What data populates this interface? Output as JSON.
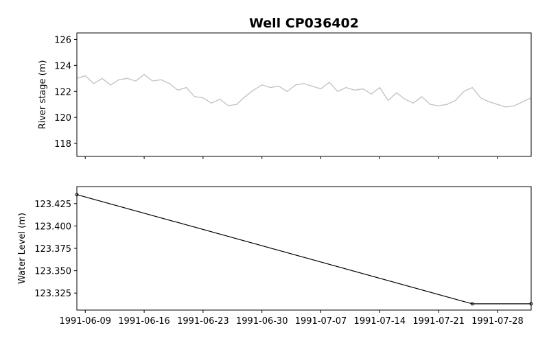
{
  "title": "Well CP036402",
  "chart_data": [
    {
      "type": "line",
      "ylabel": "River stage (m)",
      "ylim": [
        117,
        126.5
      ],
      "yticks": [
        118,
        120,
        122,
        124,
        126
      ],
      "xlim": [
        "1991-06-08",
        "1991-08-01"
      ],
      "xticks": [],
      "grid": false,
      "color": "#c0c0c0",
      "series": [
        {
          "x": [
            "1991-06-08",
            "1991-06-09",
            "1991-06-10",
            "1991-06-11",
            "1991-06-12",
            "1991-06-13",
            "1991-06-14",
            "1991-06-15",
            "1991-06-16",
            "1991-06-17",
            "1991-06-18",
            "1991-06-19",
            "1991-06-20",
            "1991-06-21",
            "1991-06-22",
            "1991-06-23",
            "1991-06-24",
            "1991-06-25",
            "1991-06-26",
            "1991-06-27",
            "1991-06-28",
            "1991-06-29",
            "1991-06-30",
            "1991-07-01",
            "1991-07-02",
            "1991-07-03",
            "1991-07-04",
            "1991-07-05",
            "1991-07-06",
            "1991-07-07",
            "1991-07-08",
            "1991-07-09",
            "1991-07-10",
            "1991-07-11",
            "1991-07-12",
            "1991-07-13",
            "1991-07-14",
            "1991-07-15",
            "1991-07-16",
            "1991-07-17",
            "1991-07-18",
            "1991-07-19",
            "1991-07-20",
            "1991-07-21",
            "1991-07-22",
            "1991-07-23",
            "1991-07-24",
            "1991-07-25",
            "1991-07-26",
            "1991-07-27",
            "1991-07-28",
            "1991-07-29",
            "1991-07-30",
            "1991-07-31",
            "1991-08-01"
          ],
          "values": [
            123.0,
            123.2,
            122.6,
            123.0,
            122.5,
            122.9,
            123.0,
            122.8,
            123.3,
            122.8,
            122.9,
            122.6,
            122.1,
            122.3,
            121.6,
            121.5,
            121.1,
            121.4,
            120.9,
            121.0,
            121.6,
            122.1,
            122.5,
            122.3,
            122.4,
            122.0,
            122.5,
            122.6,
            122.4,
            122.2,
            122.7,
            122.0,
            122.3,
            122.1,
            122.2,
            121.8,
            122.3,
            121.3,
            121.9,
            121.4,
            121.1,
            121.6,
            121.0,
            120.9,
            121.0,
            121.3,
            122.0,
            122.3,
            121.5,
            121.2,
            121.0,
            120.8,
            120.9,
            121.2,
            121.5
          ]
        }
      ]
    },
    {
      "type": "line",
      "ylabel": "Water Level (m)",
      "ylim": [
        123.306,
        123.444
      ],
      "yticks": [
        123.325,
        123.35,
        123.375,
        123.4,
        123.425
      ],
      "yticklabels": [
        "123.325",
        "123.350",
        "123.375",
        "123.400",
        "123.425"
      ],
      "xlim": [
        "1991-06-08",
        "1991-08-01"
      ],
      "xticks": [
        "1991-06-09",
        "1991-06-16",
        "1991-06-23",
        "1991-06-30",
        "1991-07-07",
        "1991-07-14",
        "1991-07-21",
        "1991-07-28"
      ],
      "grid": false,
      "color": "#000000",
      "series": [
        {
          "x": [
            "1991-06-08",
            "1991-07-25",
            "1991-08-01"
          ],
          "values": [
            123.435,
            123.313,
            123.313
          ]
        }
      ]
    }
  ]
}
